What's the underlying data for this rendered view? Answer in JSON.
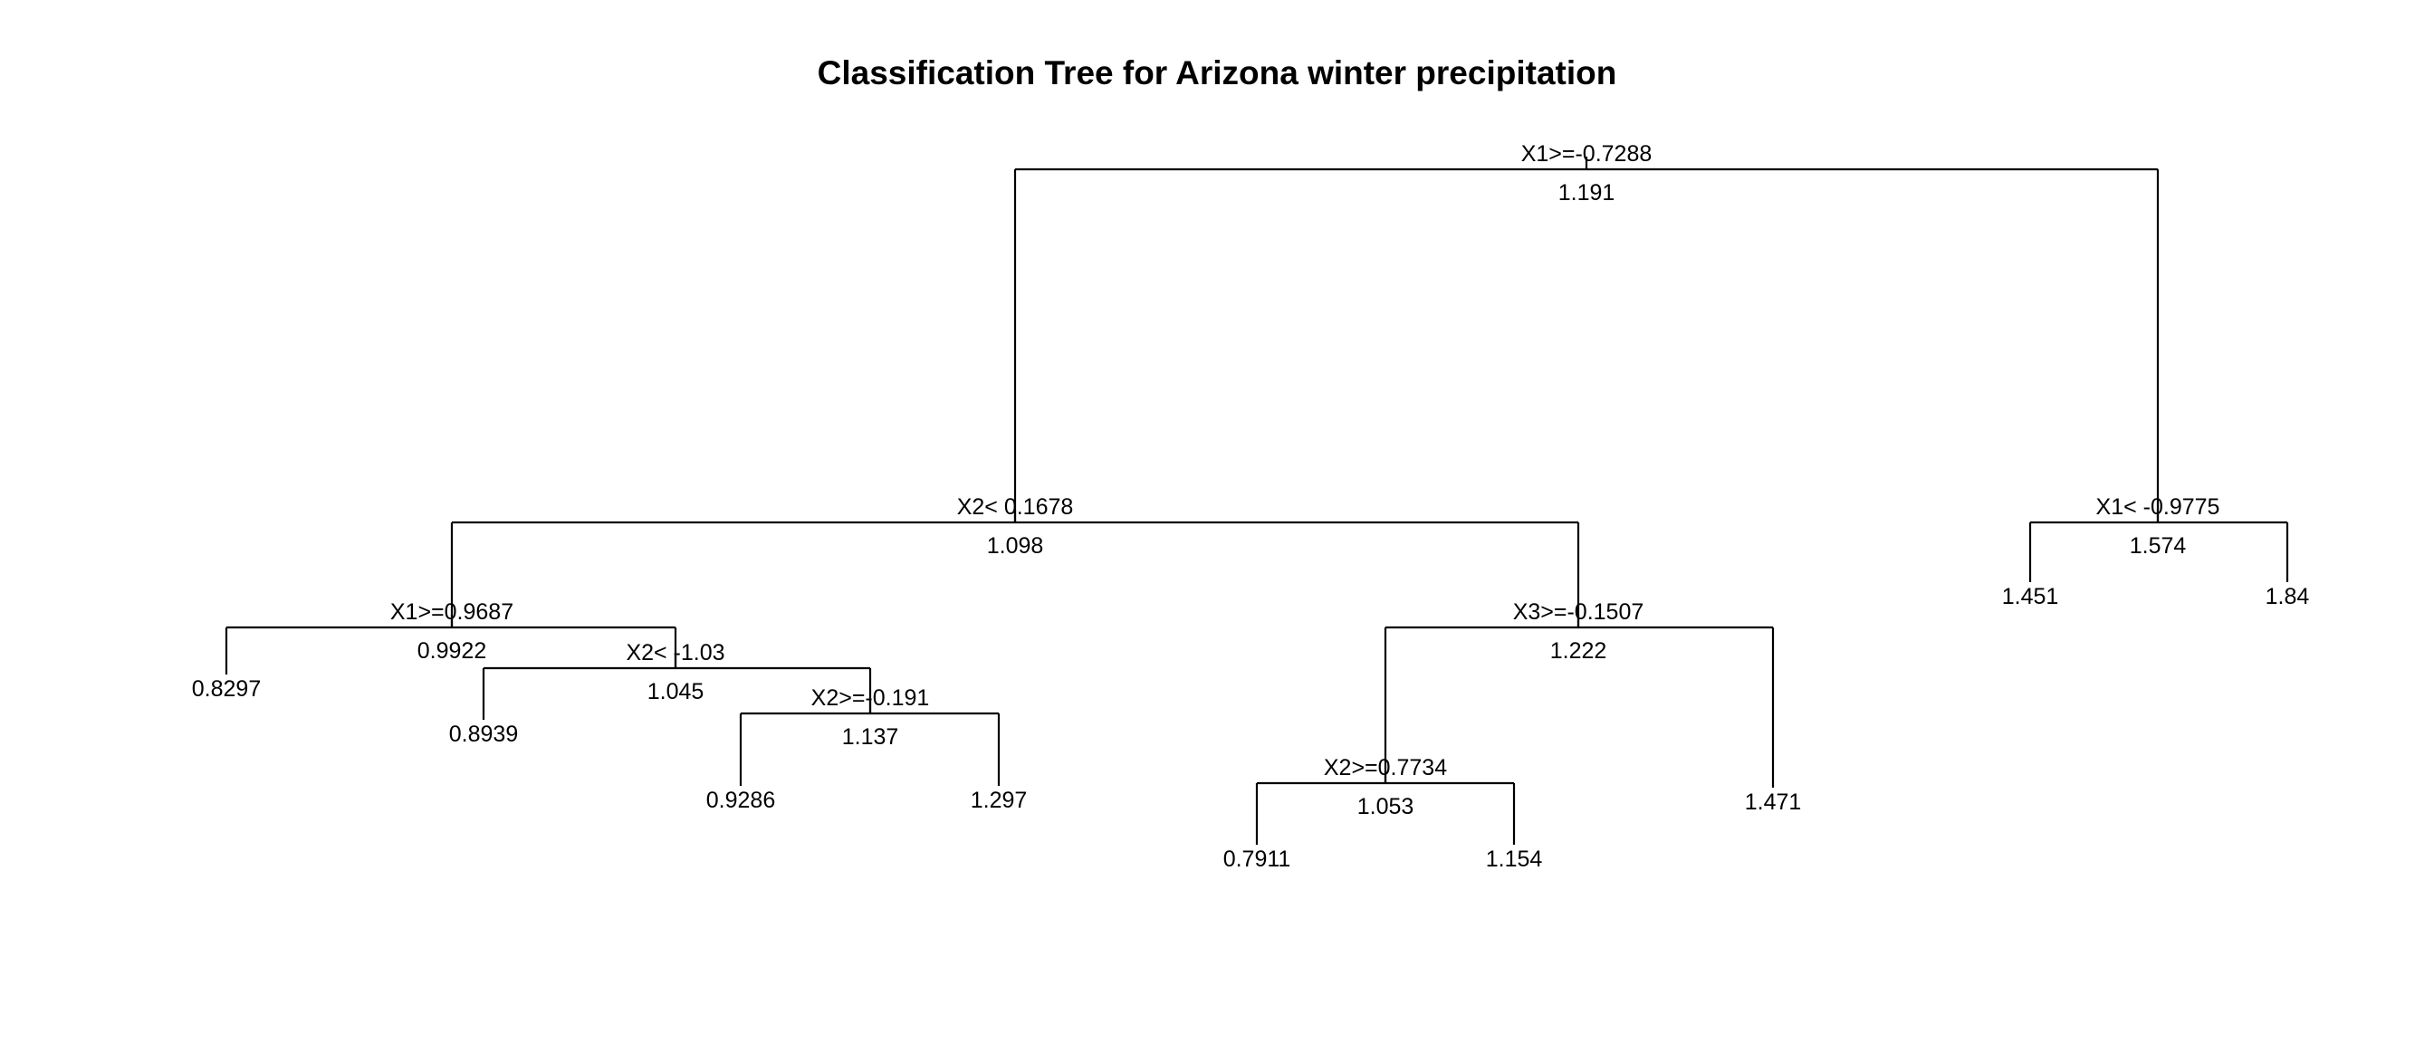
{
  "title": "Classification Tree for Arizona winter precipitation",
  "tree": {
    "split": "X1>=-0.7288",
    "value": "1.191",
    "left": {
      "split": "X2< 0.1678",
      "value": "1.098",
      "left": {
        "split": "X1>=0.9687",
        "value": "0.9922",
        "left": {
          "value": "0.8297"
        },
        "right": {
          "split": "X2< -1.03",
          "value": "1.045",
          "left": {
            "value": "0.8939"
          },
          "right": {
            "split": "X2>=-0.191",
            "value": "1.137",
            "left": {
              "value": "0.9286"
            },
            "right": {
              "value": "1.297"
            }
          }
        }
      },
      "right": {
        "split": "X3>=-0.1507",
        "value": "1.222",
        "left": {
          "split": "X2>=0.7734",
          "value": "1.053",
          "left": {
            "value": "0.7911"
          },
          "right": {
            "value": "1.154"
          }
        },
        "right": {
          "value": "1.471"
        }
      }
    },
    "right": {
      "split": "X1< -0.9775",
      "value": "1.574",
      "left": {
        "value": "1.451"
      },
      "right": {
        "value": "1.84"
      }
    }
  }
}
